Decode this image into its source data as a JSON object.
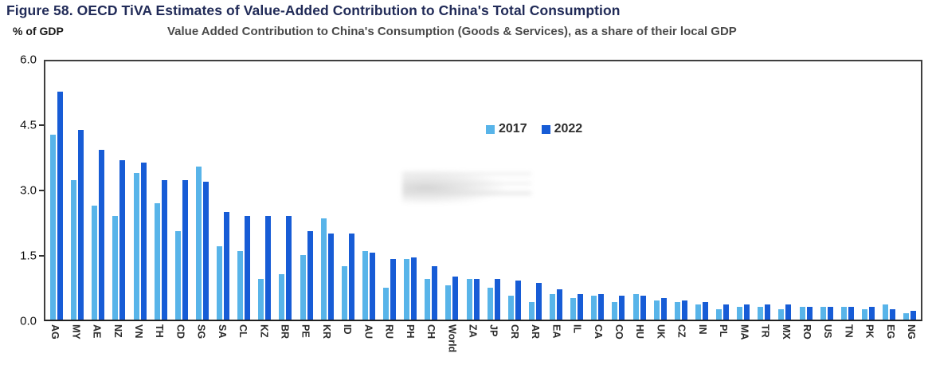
{
  "figure": {
    "title": "Figure 58. OECD TiVA Estimates of Value-Added Contribution to China's Total Consumption",
    "y_unit_label": "% of GDP",
    "subtitle": "Value Added Contribution to China's Consumption (Goods & Services), as a share of their local GDP",
    "watermark": "illegible blurred grey smudge inside plot area"
  },
  "colors": {
    "series_2017": "#58b4e9",
    "series_2022": "#175cd6",
    "title_navy": "#212b58",
    "subtitle_gray": "#4a4a4a",
    "axis_border": "#3f3f3f"
  },
  "chart_data": {
    "type": "bar",
    "title": "Value Added Contribution to China's Consumption (Goods & Services), as a share of their local GDP",
    "xlabel": "",
    "ylabel": "% of GDP",
    "ylim": [
      0,
      6.0
    ],
    "yticks": [
      0.0,
      1.5,
      3.0,
      4.5,
      6.0
    ],
    "grid": false,
    "legend_position": "inside-top-center",
    "categories": [
      "AG",
      "MY",
      "AE",
      "NZ",
      "VN",
      "TH",
      "CD",
      "SG",
      "SA",
      "CL",
      "KZ",
      "BR",
      "PE",
      "KR",
      "ID",
      "AU",
      "RU",
      "PH",
      "CH",
      "World",
      "ZA",
      "JP",
      "CR",
      "AR",
      "EA",
      "IL",
      "CA",
      "CO",
      "HU",
      "UK",
      "CZ",
      "IN",
      "PL",
      "MA",
      "TR",
      "MX",
      "RO",
      "US",
      "TN",
      "PK",
      "EG",
      "NG"
    ],
    "series": [
      {
        "name": "2017",
        "color": "#58b4e9",
        "values": [
          4.3,
          3.25,
          2.65,
          2.4,
          3.4,
          2.7,
          2.05,
          3.55,
          1.7,
          1.6,
          0.95,
          1.05,
          1.5,
          2.35,
          1.25,
          1.6,
          0.75,
          1.4,
          0.95,
          0.8,
          0.95,
          0.75,
          0.55,
          0.4,
          0.6,
          0.5,
          0.55,
          0.4,
          0.6,
          0.45,
          0.4,
          0.35,
          0.25,
          0.3,
          0.3,
          0.25,
          0.3,
          0.3,
          0.3,
          0.25,
          0.35,
          0.15
        ]
      },
      {
        "name": "2022",
        "color": "#175cd6",
        "values": [
          5.3,
          4.4,
          3.95,
          3.7,
          3.65,
          3.25,
          3.25,
          3.2,
          2.5,
          2.4,
          2.4,
          2.4,
          2.05,
          2.0,
          2.0,
          1.55,
          1.4,
          1.45,
          1.25,
          1.0,
          0.95,
          0.95,
          0.9,
          0.85,
          0.7,
          0.6,
          0.6,
          0.55,
          0.55,
          0.5,
          0.45,
          0.4,
          0.35,
          0.35,
          0.35,
          0.35,
          0.3,
          0.3,
          0.3,
          0.3,
          0.25,
          0.2
        ]
      }
    ]
  }
}
